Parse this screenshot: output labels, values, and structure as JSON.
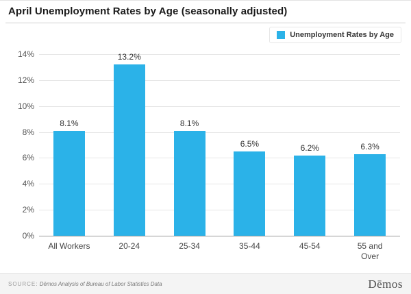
{
  "header": {
    "title": "April Unemployment Rates by Age (seasonally adjusted)"
  },
  "legend": {
    "label": "Unemployment Rates by Age",
    "swatch_color": "#2bb2e8"
  },
  "chart_data": {
    "type": "bar",
    "title": "April Unemployment Rates by Age (seasonally adjusted)",
    "categories": [
      "All Workers",
      "20-24",
      "25-34",
      "35-44",
      "45-54",
      "55 and Over"
    ],
    "values": [
      8.1,
      13.2,
      8.1,
      6.5,
      6.2,
      6.3
    ],
    "value_labels": [
      "8.1%",
      "13.2%",
      "8.1%",
      "6.5%",
      "6.2%",
      "6.3%"
    ],
    "xlabel": "",
    "ylabel": "",
    "ylim": [
      0,
      14
    ],
    "yticks": [
      "0%",
      "2%",
      "4%",
      "6%",
      "8%",
      "10%",
      "12%",
      "14%"
    ],
    "grid": true,
    "legend_position": "top-right",
    "legend_entries": [
      "Unemployment Rates by Age"
    ],
    "bar_color": "#2bb2e8"
  },
  "footer": {
    "source_prefix": "SOURCE:",
    "source_text": "Dēmos Analysis of Bureau of Labor Statistics Data",
    "logo": "Dēmos"
  }
}
